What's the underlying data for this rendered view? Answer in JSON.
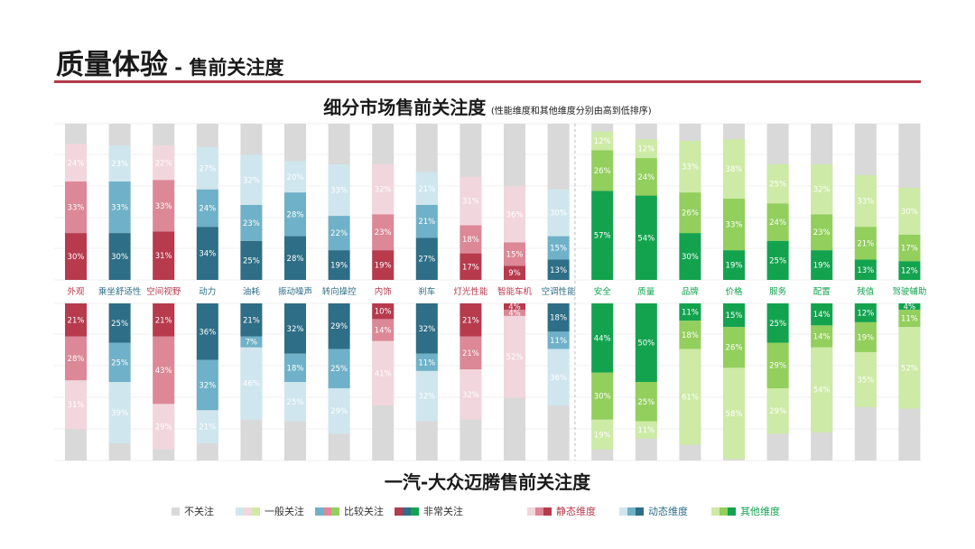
{
  "header": {
    "title": "质量体验",
    "subtitle_sep": " - ",
    "subtitle": "售前关注度"
  },
  "top_chart_title": "细分市场售前关注度",
  "top_chart_note": "(性能维度和其他维度分别由高到低排序)",
  "bottom_chart_title": "一汽-大众迈腾售前关注度",
  "colors": {
    "grey": "#d9d9d9",
    "static": [
      "#f2d6dd",
      "#dc8896",
      "#b73a4d"
    ],
    "dynamic": [
      "#cfe6ee",
      "#6fb1c8",
      "#2e6e86"
    ],
    "other": [
      "#cdeaa6",
      "#92cf5c",
      "#13a34f"
    ]
  },
  "legend": {
    "levels": [
      "不关注",
      "一般关注",
      "比较关注",
      "非常关注"
    ],
    "dims": [
      "静态维度",
      "动态维度",
      "其他维度"
    ]
  },
  "chart_data": [
    {
      "type": "bar",
      "stacked": true,
      "title": "细分市场售前关注度",
      "note": "(性能维度和其他维度分别由高到低排序)",
      "categories": [
        "外观",
        "乘坐舒适性",
        "空间视野",
        "动力",
        "油耗",
        "振动噪声",
        "转向操控",
        "内饰",
        "刹车",
        "灯光性能",
        "智能车机",
        "空调性能",
        "安全",
        "质量",
        "品牌",
        "价格",
        "服务",
        "配置",
        "残值",
        "驾驶辅助"
      ],
      "dimension": [
        "static",
        "dynamic",
        "static",
        "dynamic",
        "dynamic",
        "dynamic",
        "dynamic",
        "static",
        "dynamic",
        "static",
        "static",
        "dynamic",
        "other",
        "other",
        "other",
        "other",
        "other",
        "other",
        "other",
        "other"
      ],
      "series": [
        {
          "name": "非常关注",
          "values": [
            30,
            30,
            31,
            34,
            25,
            28,
            19,
            19,
            27,
            17,
            9,
            13,
            57,
            54,
            30,
            19,
            25,
            19,
            13,
            12
          ]
        },
        {
          "name": "比较关注",
          "values": [
            33,
            33,
            33,
            24,
            23,
            28,
            22,
            23,
            21,
            18,
            15,
            15,
            26,
            24,
            26,
            33,
            24,
            23,
            21,
            17
          ]
        },
        {
          "name": "一般关注",
          "values": [
            24,
            23,
            22,
            27,
            32,
            20,
            33,
            32,
            21,
            31,
            36,
            30,
            12,
            12,
            33,
            38,
            25,
            32,
            33,
            30
          ]
        }
      ]
    },
    {
      "type": "bar",
      "stacked": true,
      "title": "一汽-大众迈腾售前关注度",
      "categories": [
        "外观",
        "乘坐舒适性",
        "空间视野",
        "动力",
        "油耗",
        "振动噪声",
        "转向操控",
        "内饰",
        "刹车",
        "灯光性能",
        "智能车机",
        "空调性能",
        "安全",
        "质量",
        "品牌",
        "价格",
        "服务",
        "配置",
        "残值",
        "驾驶辅助"
      ],
      "series": [
        {
          "name": "非常关注",
          "values": [
            21,
            25,
            21,
            36,
            21,
            32,
            29,
            10,
            32,
            21,
            4,
            18,
            44,
            50,
            11,
            15,
            25,
            14,
            12,
            4
          ]
        },
        {
          "name": "比较关注",
          "values": [
            28,
            25,
            43,
            32,
            7,
            18,
            25,
            14,
            11,
            21,
            4,
            11,
            30,
            25,
            18,
            26,
            29,
            14,
            19,
            11
          ]
        },
        {
          "name": "一般关注",
          "values": [
            31,
            39,
            29,
            21,
            46,
            25,
            29,
            41,
            32,
            32,
            52,
            36,
            19,
            11,
            61,
            58,
            29,
            54,
            35,
            52
          ]
        }
      ]
    }
  ]
}
